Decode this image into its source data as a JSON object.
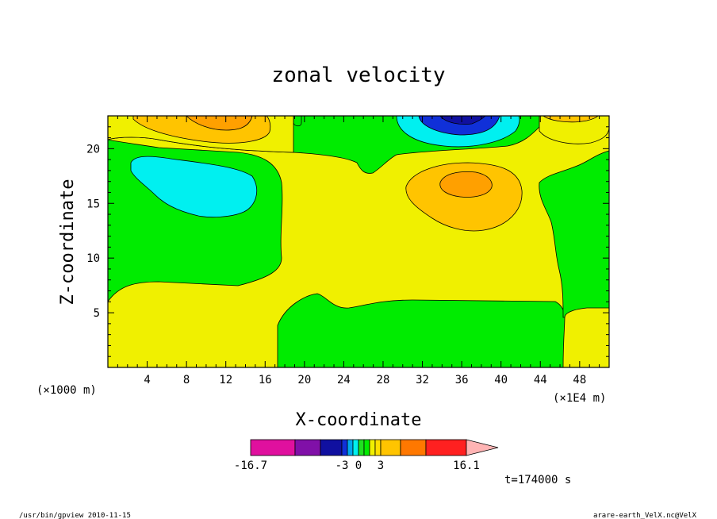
{
  "chart_data": {
    "type": "heatmap",
    "title": "zonal velocity",
    "xlabel": "X-coordinate",
    "ylabel": "Z-coordinate",
    "x_unit_left": "(×1000 m)",
    "x_unit_right": "(×1E4 m)",
    "x_ticks": [
      "4",
      "8",
      "12",
      "16",
      "20",
      "24",
      "28",
      "32",
      "36",
      "40",
      "44",
      "48"
    ],
    "y_ticks": [
      "5",
      "10",
      "15",
      "20"
    ],
    "xlim": [
      0,
      51
    ],
    "ylim": [
      0,
      23
    ],
    "time_label": "t=174000 s",
    "colorbar": {
      "labels": [
        "-16.7",
        "-3",
        "0",
        "3",
        "16.1"
      ],
      "colors": [
        "#e0109e",
        "#8010a8",
        "#1010a0",
        "#1030d8",
        "#00a8f0",
        "#00f0f0",
        "#20e020",
        "#00ec00",
        "#f0f000",
        "#ffe000",
        "#ffc400",
        "#ffa000",
        "#ff7800",
        "#ff2020",
        "#ff7878",
        "#ffb4b4"
      ]
    },
    "regions": [
      {
        "name": "cyan-low-left",
        "value": -4
      },
      {
        "name": "orange-top-left",
        "value": 5
      },
      {
        "name": "blue-top-center",
        "value": -10
      },
      {
        "name": "orange-center-right",
        "value": 5
      }
    ]
  },
  "footer": {
    "left": "/usr/bin/gpview  2010-11-15",
    "right": "arare-earth_VelX.nc@VelX"
  }
}
